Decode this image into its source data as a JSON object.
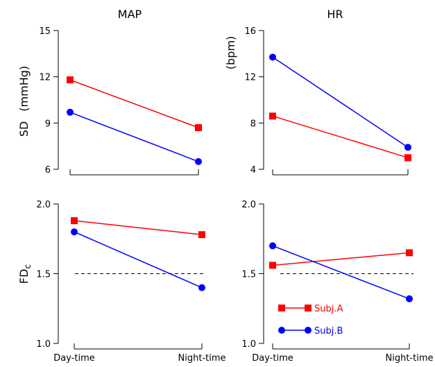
{
  "panel_titles": {
    "map": "MAP",
    "hr": "HR"
  },
  "row_labels": {
    "sd_main": "SD",
    "sd_map_unit": "(mmHg)",
    "sd_hr_unit": "(bpm)",
    "fdc_main": "FD",
    "fdc_sub": "c"
  },
  "legend": {
    "a": "Subj.A",
    "b": "Subj.B"
  },
  "colors": {
    "subj_a": "#ff0000",
    "subj_b": "#0000ff",
    "axis": "#000000",
    "reference": "#000000"
  },
  "chart_data": [
    {
      "type": "line",
      "title": "MAP",
      "ylabel": "SD (mmHg)",
      "categories": [
        "Day-time",
        "Night-time"
      ],
      "ylim": [
        6,
        15
      ],
      "yticks": [
        "6",
        "9",
        "12",
        "15"
      ],
      "show_xlabels": false,
      "series": [
        {
          "name": "Subj.A",
          "marker": "square",
          "values": [
            11.8,
            8.7
          ]
        },
        {
          "name": "Subj.B",
          "marker": "circle",
          "values": [
            9.7,
            6.5
          ]
        }
      ]
    },
    {
      "type": "line",
      "title": "HR",
      "ylabel": "(bpm)",
      "categories": [
        "Day-time",
        "Night-time"
      ],
      "ylim": [
        4,
        16
      ],
      "yticks": [
        "4",
        "8",
        "12",
        "16"
      ],
      "show_xlabels": false,
      "series": [
        {
          "name": "Subj.A",
          "marker": "square",
          "values": [
            8.6,
            5.0
          ]
        },
        {
          "name": "Subj.B",
          "marker": "circle",
          "values": [
            13.7,
            5.9
          ]
        }
      ]
    },
    {
      "type": "line",
      "ylabel": "FDc",
      "categories": [
        "Day-time",
        "Night-time"
      ],
      "ylim": [
        1.0,
        2.0
      ],
      "yticks": [
        "1.0",
        "1.5",
        "2.0"
      ],
      "reference_line": 1.5,
      "show_xlabels": true,
      "series": [
        {
          "name": "Subj.A",
          "marker": "square",
          "values": [
            1.88,
            1.78
          ]
        },
        {
          "name": "Subj.B",
          "marker": "circle",
          "values": [
            1.8,
            1.4
          ]
        }
      ]
    },
    {
      "type": "line",
      "categories": [
        "Day-time",
        "Night-time"
      ],
      "ylim": [
        1.0,
        2.0
      ],
      "yticks": [
        "1.0",
        "1.5",
        "2.0"
      ],
      "reference_line": 1.5,
      "show_xlabels": true,
      "legend": "bottom-left",
      "series": [
        {
          "name": "Subj.A",
          "marker": "square",
          "values": [
            1.56,
            1.65
          ]
        },
        {
          "name": "Subj.B",
          "marker": "circle",
          "values": [
            1.7,
            1.32
          ]
        }
      ]
    }
  ]
}
